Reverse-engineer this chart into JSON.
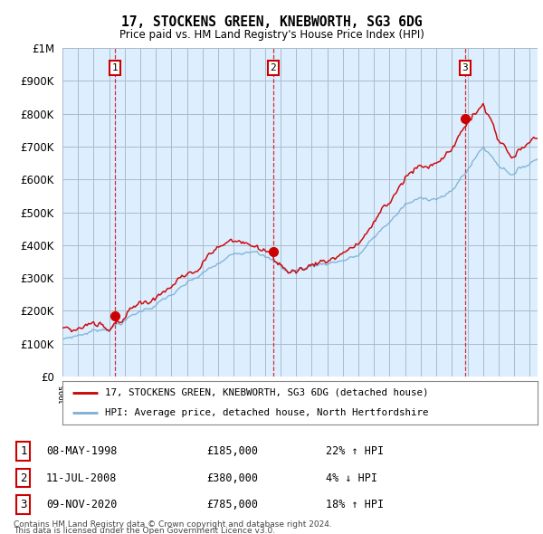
{
  "title": "17, STOCKENS GREEN, KNEBWORTH, SG3 6DG",
  "subtitle": "Price paid vs. HM Land Registry's House Price Index (HPI)",
  "sales": [
    {
      "date": "08-MAY-1998",
      "price": 185000,
      "label": "1",
      "pct": "22%",
      "dir": "↑"
    },
    {
      "date": "11-JUL-2008",
      "price": 380000,
      "label": "2",
      "pct": "4%",
      "dir": "↓"
    },
    {
      "date": "09-NOV-2020",
      "price": 785000,
      "label": "3",
      "pct": "18%",
      "dir": "↑"
    }
  ],
  "sale_years": [
    1998.36,
    2008.53,
    2020.85
  ],
  "legend_property": "17, STOCKENS GREEN, KNEBWORTH, SG3 6DG (detached house)",
  "legend_hpi": "HPI: Average price, detached house, North Hertfordshire",
  "footer1": "Contains HM Land Registry data © Crown copyright and database right 2024.",
  "footer2": "This data is licensed under the Open Government Licence v3.0.",
  "property_color": "#cc0000",
  "hpi_color": "#7ab0d4",
  "background_color": "#ffffff",
  "chart_bg_color": "#ddeeff",
  "grid_color": "#aabbcc",
  "ylim": [
    0,
    1000000
  ],
  "yticks": [
    0,
    100000,
    200000,
    300000,
    400000,
    500000,
    600000,
    700000,
    800000,
    900000,
    1000000
  ],
  "xlim_start": 1995.0,
  "xlim_end": 2025.5
}
